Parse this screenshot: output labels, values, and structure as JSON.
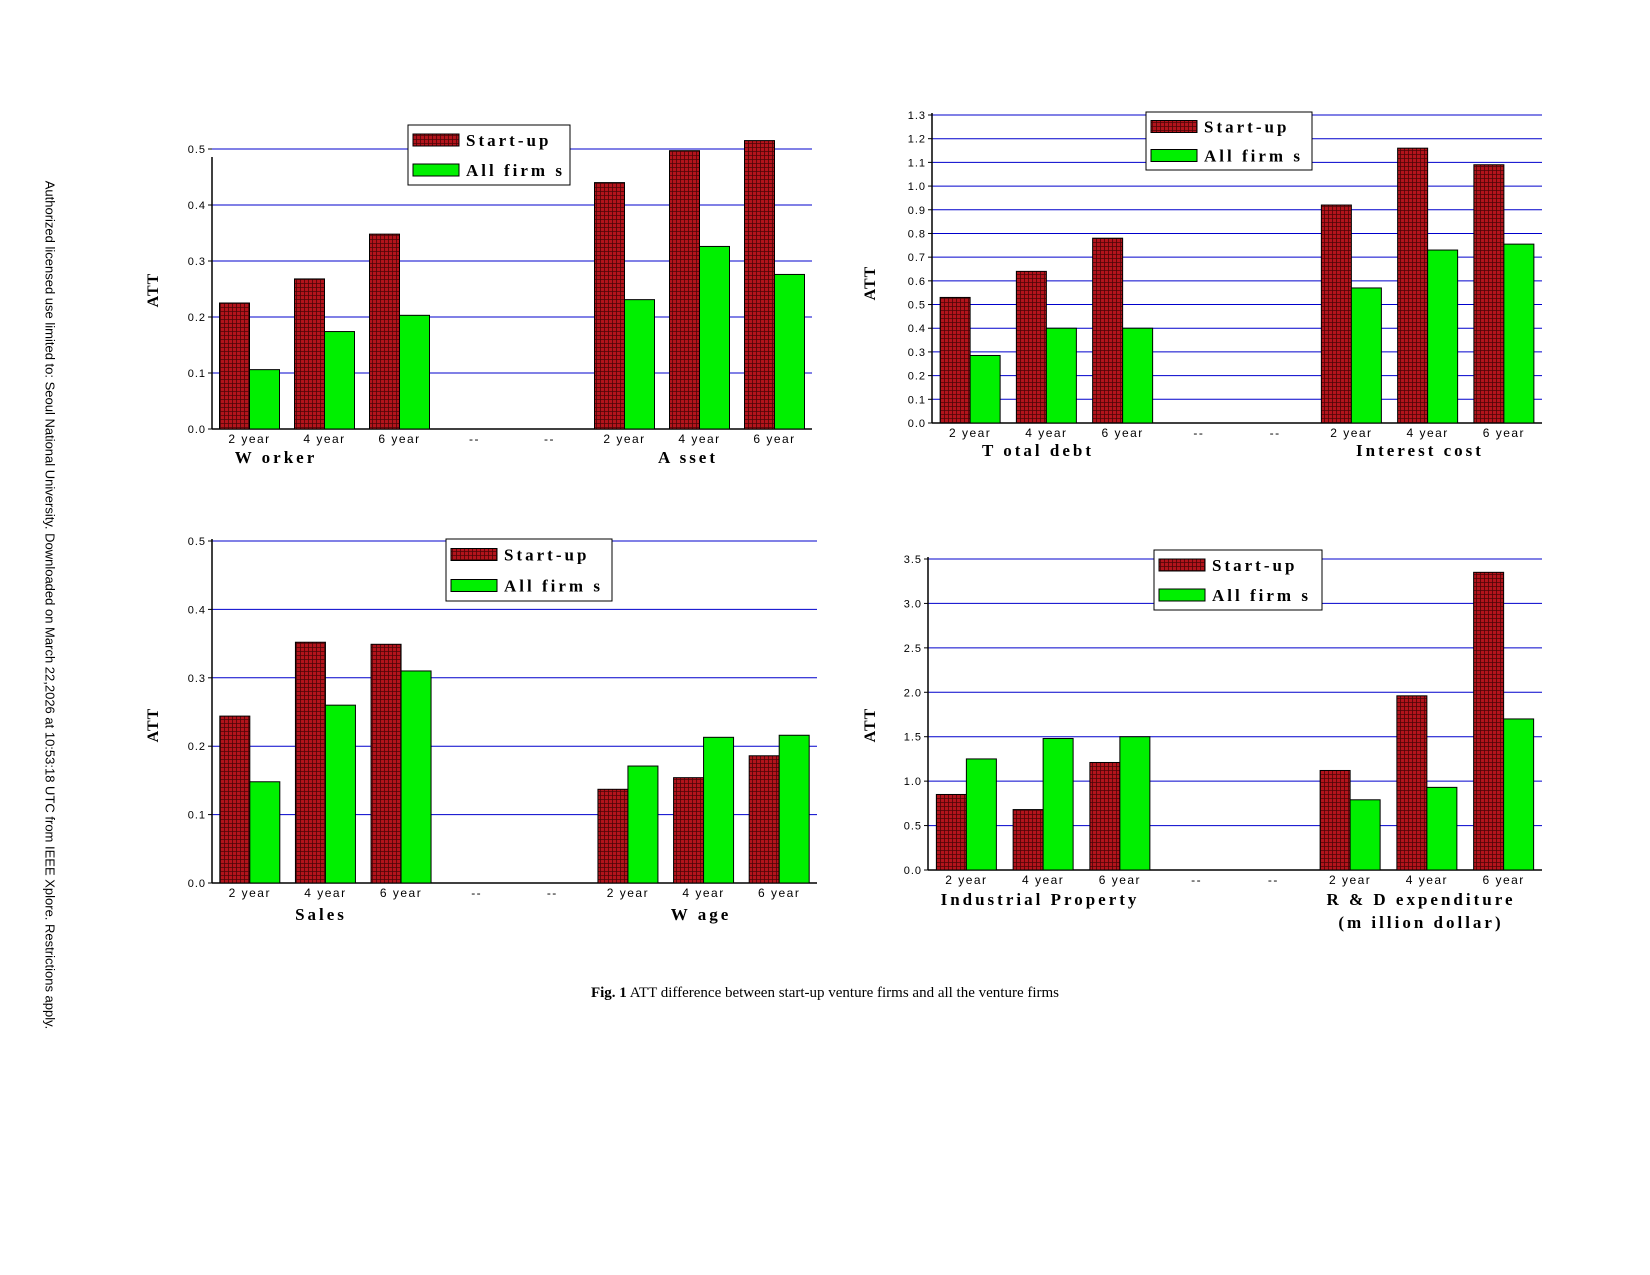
{
  "side_note": "Authorized licensed use limited to: Seoul National University. Downloaded on March 22,2026 at 10:53:18 UTC from IEEE Xplore.  Restrictions apply.",
  "caption": {
    "label": "Fig. 1",
    "text": " ATT difference between start-up venture firms and all the venture firms"
  },
  "colors": {
    "startup": "#b3141c",
    "allfirms": "#00f000",
    "grid": "#0000cc"
  },
  "chart_data": [
    {
      "type": "bar",
      "ylabel": "ATT",
      "ylim": [
        0,
        0.5
      ],
      "y_ticks": [
        "0.0",
        "0.1",
        "0.2",
        "0.3",
        "0.4",
        "0.5"
      ],
      "categories": [
        "2 year",
        "4 year",
        "6 year",
        "--",
        "--",
        "2 year",
        "4 year",
        "6 year"
      ],
      "group_labels": [
        "W orker",
        "A sset"
      ],
      "series": [
        {
          "name": "Start-up",
          "values": [
            0.225,
            0.268,
            0.348,
            null,
            null,
            0.44,
            0.497,
            0.515
          ]
        },
        {
          "name": "All firm s",
          "values": [
            0.106,
            0.174,
            0.203,
            null,
            null,
            0.231,
            0.326,
            0.276
          ]
        }
      ],
      "legend": "top-center",
      "grid": true
    },
    {
      "type": "bar",
      "ylabel": "ATT",
      "ylim": [
        0,
        1.3
      ],
      "y_ticks": [
        "0.0",
        "0.1",
        "0.2",
        "0.3",
        "0.4",
        "0.5",
        "0.6",
        "0.7",
        "0.8",
        "0.9",
        "1.0",
        "1.1",
        "1.2",
        "1.3"
      ],
      "categories": [
        "2 year",
        "4 year",
        "6 year",
        "--",
        "--",
        "2 year",
        "4 year",
        "6 year"
      ],
      "group_labels": [
        "T otal debt",
        "Interest cost"
      ],
      "series": [
        {
          "name": "Start-up",
          "values": [
            0.53,
            0.64,
            0.78,
            null,
            null,
            0.92,
            1.16,
            1.09
          ]
        },
        {
          "name": "All firm s",
          "values": [
            0.285,
            0.4,
            0.4,
            null,
            null,
            0.57,
            0.73,
            0.755
          ]
        }
      ],
      "legend": "top-center",
      "grid": true
    },
    {
      "type": "bar",
      "ylabel": "ATT",
      "ylim": [
        0,
        0.5
      ],
      "y_ticks": [
        "0.0",
        "0.1",
        "0.2",
        "0.3",
        "0.4",
        "0.5"
      ],
      "categories": [
        "2 year",
        "4 year",
        "6 year",
        "--",
        "--",
        "2 year",
        "4 year",
        "6 year"
      ],
      "group_labels": [
        "Sales",
        "W age"
      ],
      "series": [
        {
          "name": "Start-up",
          "values": [
            0.244,
            0.352,
            0.349,
            null,
            null,
            0.137,
            0.154,
            0.186
          ]
        },
        {
          "name": "All firm s",
          "values": [
            0.148,
            0.26,
            0.31,
            null,
            null,
            0.171,
            0.213,
            0.216
          ]
        }
      ],
      "legend": "top-center",
      "grid": true
    },
    {
      "type": "bar",
      "ylabel": "ATT",
      "ylim": [
        0,
        3.5
      ],
      "y_ticks": [
        "0.0",
        "0.5",
        "1.0",
        "1.5",
        "2.0",
        "2.5",
        "3.0",
        "3.5"
      ],
      "categories": [
        "2 year",
        "4 year",
        "6 year",
        "--",
        "--",
        "2 year",
        "4 year",
        "6 year"
      ],
      "group_labels": [
        "Industrial Property",
        "R & D  expenditure",
        "(m illion  dollar)"
      ],
      "series": [
        {
          "name": "Start-up",
          "values": [
            0.85,
            0.68,
            1.21,
            null,
            null,
            1.12,
            1.96,
            3.35
          ]
        },
        {
          "name": "All firm s",
          "values": [
            1.25,
            1.48,
            1.5,
            null,
            null,
            0.79,
            0.93,
            1.7
          ]
        }
      ],
      "legend": "top-center",
      "grid": true
    }
  ]
}
